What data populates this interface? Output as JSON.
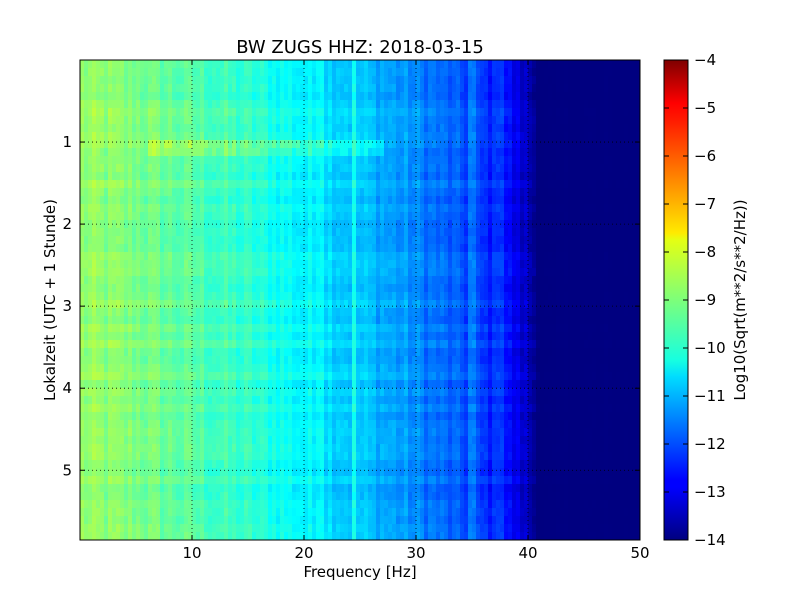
{
  "chart_data": {
    "type": "heatmap",
    "title": "BW ZUGS HHZ: 2018-03-15",
    "xlabel": "Frequency [Hz]",
    "ylabel": "Lokalzeit (UTC + 1 Stunde)",
    "xlim": [
      0,
      50
    ],
    "ylim": [
      5.85,
      0
    ],
    "xticks": [
      10,
      20,
      30,
      40,
      50
    ],
    "xtick_labels": [
      "10",
      "20",
      "30",
      "40",
      "50"
    ],
    "yticks": [
      1,
      2,
      3,
      4,
      5
    ],
    "ytick_labels": [
      "1",
      "2",
      "3",
      "4",
      "5"
    ],
    "grid": true,
    "colormap": "jet",
    "colorbar": {
      "label": "Log10(Sqrt(m**2/s**2/Hz))",
      "range": [
        -14,
        -4
      ],
      "ticks": [
        -4,
        -5,
        -6,
        -7,
        -8,
        -9,
        -10,
        -11,
        -12,
        -13,
        -14
      ],
      "tick_labels": [
        "−4",
        "−5",
        "−6",
        "−7",
        "−8",
        "−9",
        "−10",
        "−11",
        "−12",
        "−13",
        "−14"
      ]
    },
    "spectral_profile": {
      "frequency_hz": [
        0,
        5,
        10,
        15,
        20,
        25,
        30,
        35,
        38,
        40,
        41,
        50
      ],
      "log10_amplitude": [
        -8.8,
        -9.0,
        -9.4,
        -9.8,
        -10.3,
        -10.8,
        -11.4,
        -12.1,
        -12.6,
        -13.4,
        -14.0,
        -14.0
      ]
    },
    "features": [
      {
        "type": "band",
        "time_range": [
          1.0,
          1.2
        ],
        "freq_range": [
          6,
          27
        ],
        "log10_amplitude_offset": 0.5
      },
      {
        "type": "line",
        "frequency_hz": 24.5,
        "log10_amplitude_offset": 0.6
      },
      {
        "type": "line",
        "frequency_hz": 21.5,
        "log10_amplitude_offset": 0.4
      },
      {
        "type": "line",
        "frequency_hz": 35.0,
        "log10_amplitude_offset": 0.5
      },
      {
        "type": "line",
        "frequency_hz": 37.5,
        "log10_amplitude_offset": 0.5
      }
    ]
  }
}
